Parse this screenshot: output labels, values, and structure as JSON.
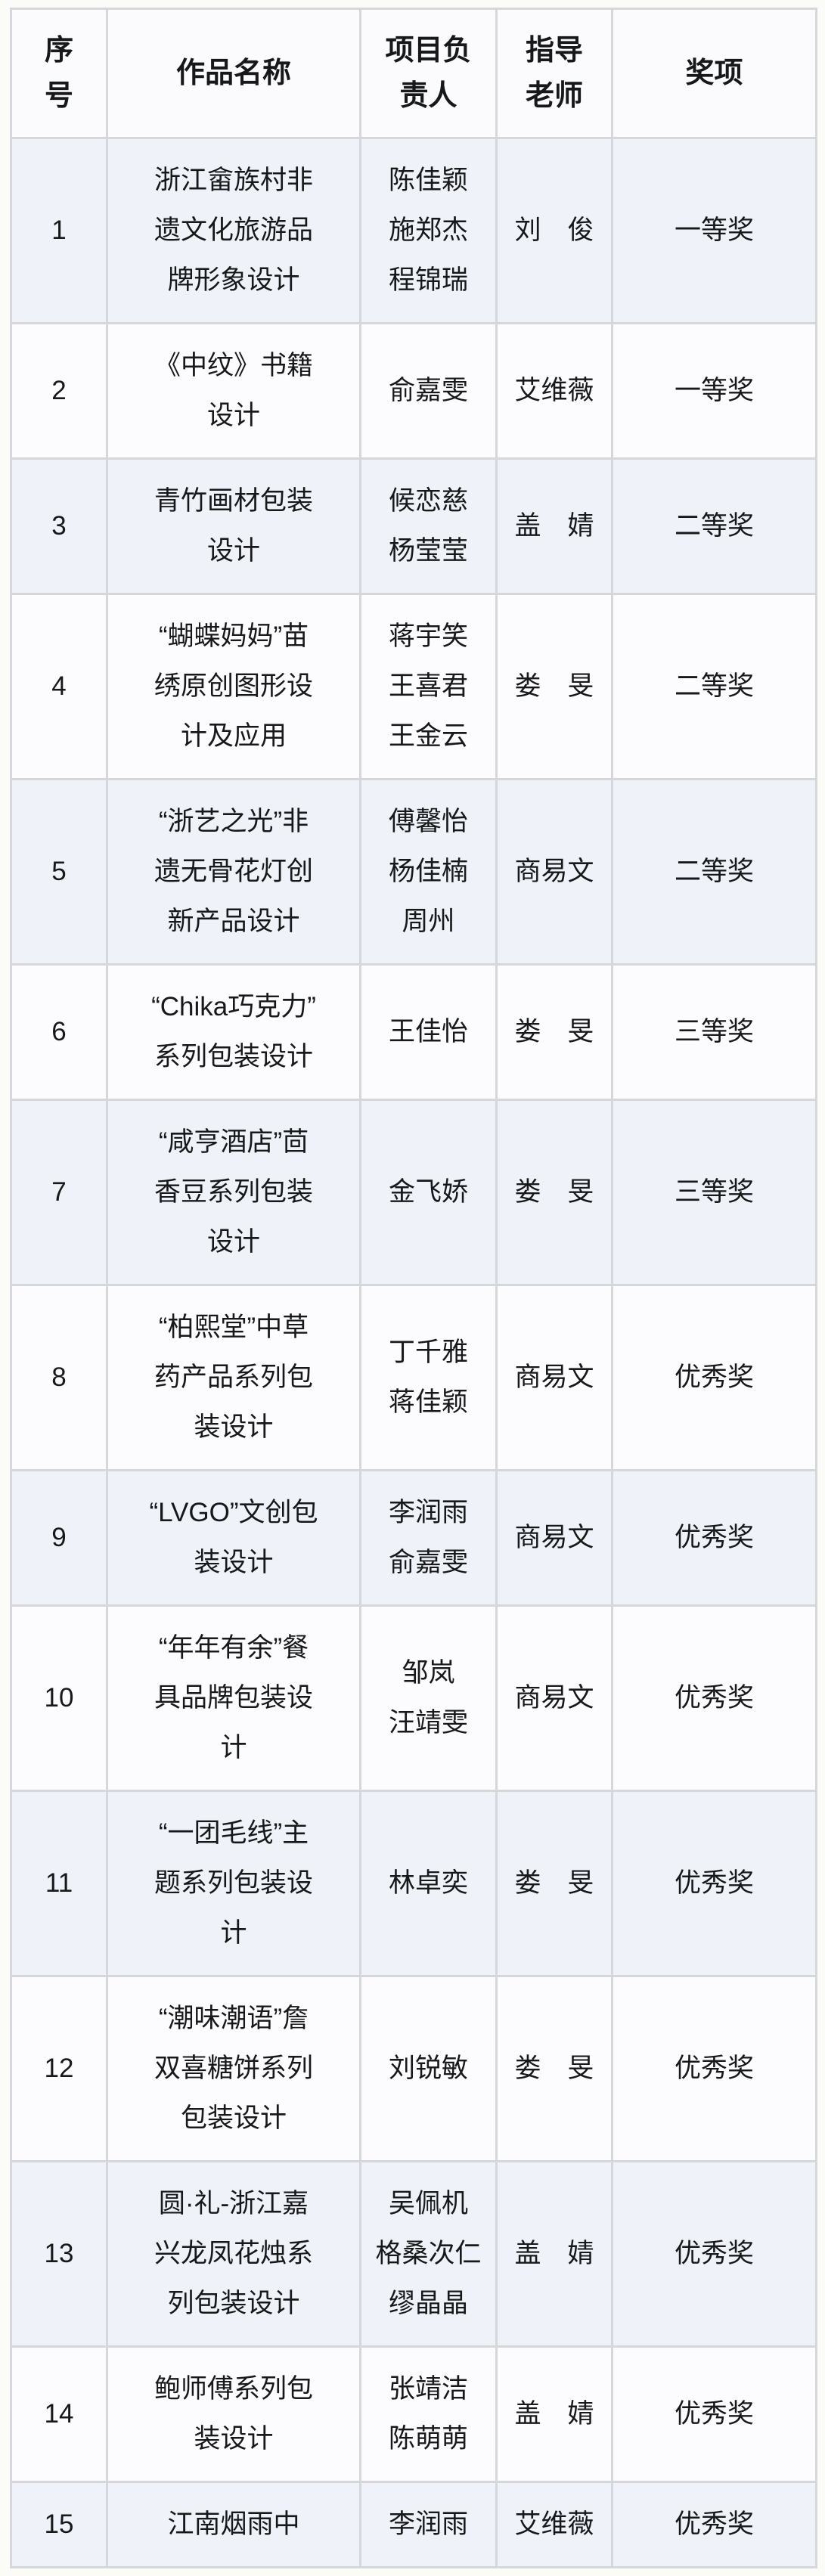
{
  "colors": {
    "page_bg": "#fbfbf7",
    "header_bg": "#fbfbfd",
    "row_alt_bg": "#eff3f9",
    "row_bg": "#fcfcfe",
    "border": "#d5d7da",
    "text": "#17181a"
  },
  "table": {
    "columns": [
      {
        "id": "no",
        "label": "序号",
        "label_lines": [
          "序",
          "号"
        ]
      },
      {
        "id": "title",
        "label": "作品名称",
        "label_lines": [
          "作品名称"
        ]
      },
      {
        "id": "leader",
        "label": "项目负责人",
        "label_lines": [
          "项目负",
          "责人"
        ]
      },
      {
        "id": "teacher",
        "label": "指导老师",
        "label_lines": [
          "指导",
          "老师"
        ]
      },
      {
        "id": "award",
        "label": "奖项",
        "label_lines": [
          "奖项"
        ]
      }
    ],
    "rows": [
      {
        "no": "1",
        "title": "浙江畲族村非遗文化旅游品牌形象设计",
        "title_lines": [
          "浙江畲族村非",
          "遗文化旅游品",
          "牌形象设计"
        ],
        "leaders": [
          "陈佳颖",
          "施郑杰",
          "程锦瑞"
        ],
        "teacher": "刘　俊",
        "award": "一等奖"
      },
      {
        "no": "2",
        "title": "《中纹》书籍设计",
        "title_lines": [
          "《中纹》书籍",
          "设计"
        ],
        "leaders": [
          "俞嘉雯"
        ],
        "teacher": "艾维薇",
        "award": "一等奖"
      },
      {
        "no": "3",
        "title": "青竹画材包装设计",
        "title_lines": [
          "青竹画材包装",
          "设计"
        ],
        "leaders": [
          "候恋慈",
          "杨莹莹"
        ],
        "teacher": "盖　婧",
        "award": "二等奖"
      },
      {
        "no": "4",
        "title": "“蝴蝶妈妈”苗绣原创图形设计及应用",
        "title_lines": [
          "“蝴蝶妈妈”苗",
          "绣原创图形设",
          "计及应用"
        ],
        "leaders": [
          "蒋宇笑",
          "王喜君",
          "王金云"
        ],
        "teacher": "娄　旻",
        "award": "二等奖"
      },
      {
        "no": "5",
        "title": "“浙艺之光”非遗无骨花灯创新产品设计",
        "title_lines": [
          "“浙艺之光”非",
          "遗无骨花灯创",
          "新产品设计"
        ],
        "leaders": [
          "傅馨怡",
          "杨佳楠",
          "周州"
        ],
        "teacher": "商易文",
        "award": "二等奖"
      },
      {
        "no": "6",
        "title": "“Chika巧克力”系列包装设计",
        "title_lines": [
          "“Chika巧克力”",
          "系列包装设计"
        ],
        "leaders": [
          "王佳怡"
        ],
        "teacher": "娄　旻",
        "award": "三等奖"
      },
      {
        "no": "7",
        "title": "“咸亨酒店”茴香豆系列包装设计",
        "title_lines": [
          "“咸亨酒店”茴",
          "香豆系列包装",
          "设计"
        ],
        "leaders": [
          "金飞娇"
        ],
        "teacher": "娄　旻",
        "award": "三等奖"
      },
      {
        "no": "8",
        "title": "“柏熙堂”中草药产品系列包装设计",
        "title_lines": [
          "“柏熙堂”中草",
          "药产品系列包",
          "装设计"
        ],
        "leaders": [
          "丁千雅",
          "蒋佳颖"
        ],
        "teacher": "商易文",
        "award": "优秀奖"
      },
      {
        "no": "9",
        "title": "“LVGO”文创包装设计",
        "title_lines": [
          "“LVGO”文创包",
          "装设计"
        ],
        "leaders": [
          "李润雨",
          "俞嘉雯"
        ],
        "teacher": "商易文",
        "award": "优秀奖"
      },
      {
        "no": "10",
        "title": "“年年有余”餐具品牌包装设计",
        "title_lines": [
          "“年年有余”餐",
          "具品牌包装设",
          "计"
        ],
        "leaders": [
          "邹岚",
          "汪靖雯"
        ],
        "teacher": "商易文",
        "award": "优秀奖"
      },
      {
        "no": "11",
        "title": "“一团毛线”主题系列包装设计",
        "title_lines": [
          "“一团毛线”主",
          "题系列包装设",
          "计"
        ],
        "leaders": [
          "林卓奕"
        ],
        "teacher": "娄　旻",
        "award": "优秀奖"
      },
      {
        "no": "12",
        "title": "“潮味潮语”詹双喜糖饼系列包装设计",
        "title_lines": [
          "“潮味潮语”詹",
          "双喜糖饼系列",
          "包装设计"
        ],
        "leaders": [
          "刘锐敏"
        ],
        "teacher": "娄　旻",
        "award": "优秀奖"
      },
      {
        "no": "13",
        "title": "圆·礼-浙江嘉兴龙凤花烛系列包装设计",
        "title_lines": [
          "圆·礼-浙江嘉",
          "兴龙凤花烛系",
          "列包装设计"
        ],
        "leaders": [
          "吴佩机",
          "格桑次仁",
          "缪晶晶"
        ],
        "teacher": "盖　婧",
        "award": "优秀奖"
      },
      {
        "no": "14",
        "title": "鲍师傅系列包装设计",
        "title_lines": [
          "鲍师傅系列包",
          "装设计"
        ],
        "leaders": [
          "张靖洁",
          "陈萌萌"
        ],
        "teacher": "盖　婧",
        "award": "优秀奖"
      },
      {
        "no": "15",
        "title": "江南烟雨中",
        "title_lines": [
          "江南烟雨中"
        ],
        "leaders": [
          "李润雨"
        ],
        "teacher": "艾维薇",
        "award": "优秀奖"
      }
    ]
  }
}
